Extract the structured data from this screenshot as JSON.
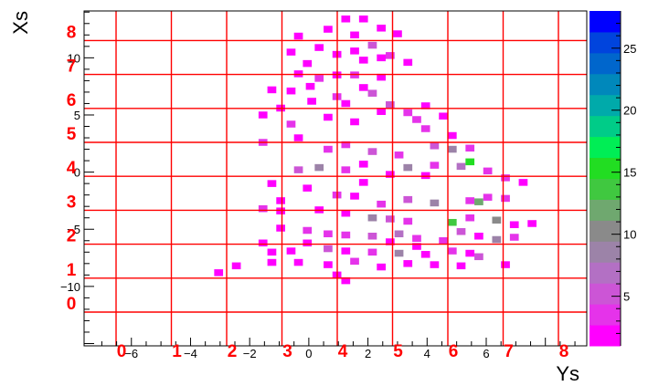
{
  "chart_data": {
    "type": "heatmap",
    "title": "",
    "xlabel": "Ys",
    "ylabel": "Xs",
    "xlim": [
      -7.6,
      9.4
    ],
    "ylim": [
      -15.2,
      14.1
    ],
    "x_ticks": [
      -6,
      -4,
      -2,
      0,
      2,
      4,
      6
    ],
    "y_ticks": [
      -10,
      -5,
      0,
      5,
      10
    ],
    "z_ticks": [
      5,
      10,
      15,
      20,
      25
    ],
    "zlim": [
      1,
      28
    ],
    "grid_x_labels": [
      "0",
      "1",
      "2",
      "3",
      "4",
      "5",
      "6",
      "7",
      "8"
    ],
    "grid_y_labels": [
      "0",
      "1",
      "2",
      "3",
      "4",
      "5",
      "6",
      "7",
      "8"
    ],
    "grid_color": "#ff0000",
    "palette": [
      "#ff00ff",
      "#e533ea",
      "#cc55d6",
      "#b370c4",
      "#9c83a8",
      "#8a8a8a",
      "#6fa86f",
      "#40c840",
      "#22dd22",
      "#00ee55",
      "#00cc88",
      "#00aaaa",
      "#0088bb",
      "#0066cc",
      "#0044dd",
      "#0000ff"
    ],
    "cells": [
      [
        -0.35,
        11.9,
        1
      ],
      [
        0.65,
        12.5,
        1
      ],
      [
        1.25,
        13.4,
        1
      ],
      [
        1.85,
        13.4,
        1
      ],
      [
        3.0,
        12.1,
        1
      ],
      [
        1.55,
        10.6,
        1
      ],
      [
        2.15,
        11.1,
        6
      ],
      [
        1.85,
        9.8,
        2
      ],
      [
        2.75,
        10.2,
        3
      ],
      [
        0.35,
        10.9,
        1
      ],
      [
        3.35,
        9.6,
        1
      ],
      [
        -0.05,
        9.5,
        1
      ],
      [
        -0.35,
        8.6,
        1
      ],
      [
        0.35,
        8.2,
        4
      ],
      [
        0.95,
        8.5,
        1
      ],
      [
        1.55,
        8.5,
        3
      ],
      [
        2.45,
        8.3,
        1
      ],
      [
        -1.25,
        7.2,
        1
      ],
      [
        -0.6,
        7.1,
        2
      ],
      [
        0.1,
        6.2,
        1
      ],
      [
        0.95,
        6.6,
        4
      ],
      [
        2.15,
        6.9,
        5
      ],
      [
        2.75,
        5.9,
        5
      ],
      [
        3.35,
        5.2,
        4
      ],
      [
        3.95,
        5.8,
        2
      ],
      [
        4.55,
        4.9,
        1
      ],
      [
        -1.55,
        5.0,
        1
      ],
      [
        -0.6,
        4.2,
        3
      ],
      [
        0.65,
        4.8,
        1
      ],
      [
        1.55,
        4.4,
        2
      ],
      [
        3.95,
        3.8,
        4
      ],
      [
        4.85,
        3.2,
        1
      ],
      [
        -1.55,
        2.6,
        3
      ],
      [
        -0.35,
        3.0,
        1
      ],
      [
        0.65,
        2.0,
        4
      ],
      [
        1.25,
        2.4,
        3
      ],
      [
        2.15,
        1.8,
        6
      ],
      [
        3.05,
        1.5,
        4
      ],
      [
        4.25,
        2.3,
        6
      ],
      [
        4.85,
        2.0,
        9
      ],
      [
        5.45,
        2.1,
        3
      ],
      [
        2.75,
        -0.2,
        2
      ],
      [
        -1.25,
        -1.0,
        1
      ],
      [
        -0.35,
        0.2,
        6
      ],
      [
        0.35,
        0.4,
        8
      ],
      [
        1.25,
        0.2,
        3
      ],
      [
        1.85,
        0.7,
        2
      ],
      [
        3.35,
        0.4,
        9
      ],
      [
        4.25,
        0.6,
        3
      ],
      [
        5.15,
        0.5,
        7
      ],
      [
        5.45,
        0.9,
        16
      ],
      [
        6.05,
        0.1,
        4
      ],
      [
        6.65,
        -0.5,
        3
      ],
      [
        7.25,
        -0.9,
        1
      ],
      [
        -0.05,
        -1.4,
        1
      ],
      [
        0.95,
        -2.0,
        4
      ],
      [
        1.55,
        -2.1,
        2
      ],
      [
        2.45,
        -2.8,
        3
      ],
      [
        3.35,
        -2.4,
        6
      ],
      [
        4.25,
        -2.7,
        9
      ],
      [
        5.45,
        -2.5,
        4
      ],
      [
        5.75,
        -2.6,
        12
      ],
      [
        6.05,
        -2.2,
        4
      ],
      [
        6.65,
        -2.3,
        3
      ],
      [
        -1.55,
        -3.2,
        3
      ],
      [
        -0.95,
        -3.4,
        2
      ],
      [
        0.35,
        -3.3,
        1
      ],
      [
        1.25,
        -3.6,
        2
      ],
      [
        2.15,
        -4.0,
        8
      ],
      [
        2.75,
        -4.1,
        6
      ],
      [
        3.35,
        -4.3,
        4
      ],
      [
        4.85,
        -4.4,
        14
      ],
      [
        5.45,
        -4.0,
        3
      ],
      [
        6.35,
        -4.2,
        10
      ],
      [
        6.95,
        -4.6,
        2
      ],
      [
        7.55,
        -4.5,
        1
      ],
      [
        -0.95,
        -4.9,
        1
      ],
      [
        -0.05,
        -5.1,
        3
      ],
      [
        0.65,
        -5.4,
        3
      ],
      [
        1.25,
        -5.5,
        4
      ],
      [
        2.15,
        -5.6,
        5
      ],
      [
        3.05,
        -5.4,
        7
      ],
      [
        3.65,
        -5.8,
        4
      ],
      [
        4.55,
        -6.0,
        3
      ],
      [
        5.15,
        -5.2,
        6
      ],
      [
        5.75,
        -5.6,
        2
      ],
      [
        6.35,
        -5.9,
        8
      ],
      [
        6.95,
        -5.7,
        3
      ],
      [
        -1.55,
        -6.2,
        1
      ],
      [
        -0.6,
        -6.9,
        2
      ],
      [
        0.65,
        -6.7,
        6
      ],
      [
        1.25,
        -6.9,
        2
      ],
      [
        2.15,
        -7.0,
        3
      ],
      [
        3.05,
        -7.1,
        9
      ],
      [
        3.95,
        -7.2,
        1
      ],
      [
        4.85,
        -6.9,
        3
      ],
      [
        5.45,
        -7.1,
        2
      ],
      [
        5.75,
        -7.4,
        6
      ],
      [
        -0.35,
        -7.9,
        1
      ],
      [
        0.65,
        -8.1,
        1
      ],
      [
        1.55,
        -7.8,
        3
      ],
      [
        2.45,
        -8.3,
        1
      ],
      [
        3.35,
        -8.0,
        1
      ],
      [
        4.25,
        -8.1,
        2
      ],
      [
        5.15,
        -8.2,
        1
      ],
      [
        6.65,
        -8.1,
        2
      ],
      [
        -3.05,
        -8.8,
        1
      ],
      [
        -2.45,
        -8.2,
        1
      ],
      [
        1.25,
        -9.5,
        1
      ],
      [
        0.95,
        -9.0,
        2
      ],
      [
        -1.25,
        -7.9,
        1
      ],
      [
        -1.25,
        -7.0,
        1
      ],
      [
        -0.05,
        -6.2,
        1
      ],
      [
        2.75,
        -6.1,
        1
      ],
      [
        3.65,
        -6.5,
        2
      ],
      [
        -0.95,
        -2.5,
        1
      ],
      [
        1.85,
        -0.9,
        2
      ],
      [
        3.95,
        -0.3,
        1
      ],
      [
        3.65,
        4.6,
        3
      ],
      [
        2.45,
        5.3,
        1
      ],
      [
        1.25,
        6.0,
        1
      ],
      [
        -0.95,
        5.6,
        1
      ],
      [
        0.05,
        7.5,
        1
      ],
      [
        1.85,
        7.4,
        2
      ],
      [
        2.45,
        10.0,
        1
      ],
      [
        0.95,
        10.3,
        1
      ],
      [
        1.55,
        12.0,
        1
      ],
      [
        2.45,
        12.6,
        1
      ],
      [
        -0.6,
        10.5,
        1
      ]
    ]
  }
}
